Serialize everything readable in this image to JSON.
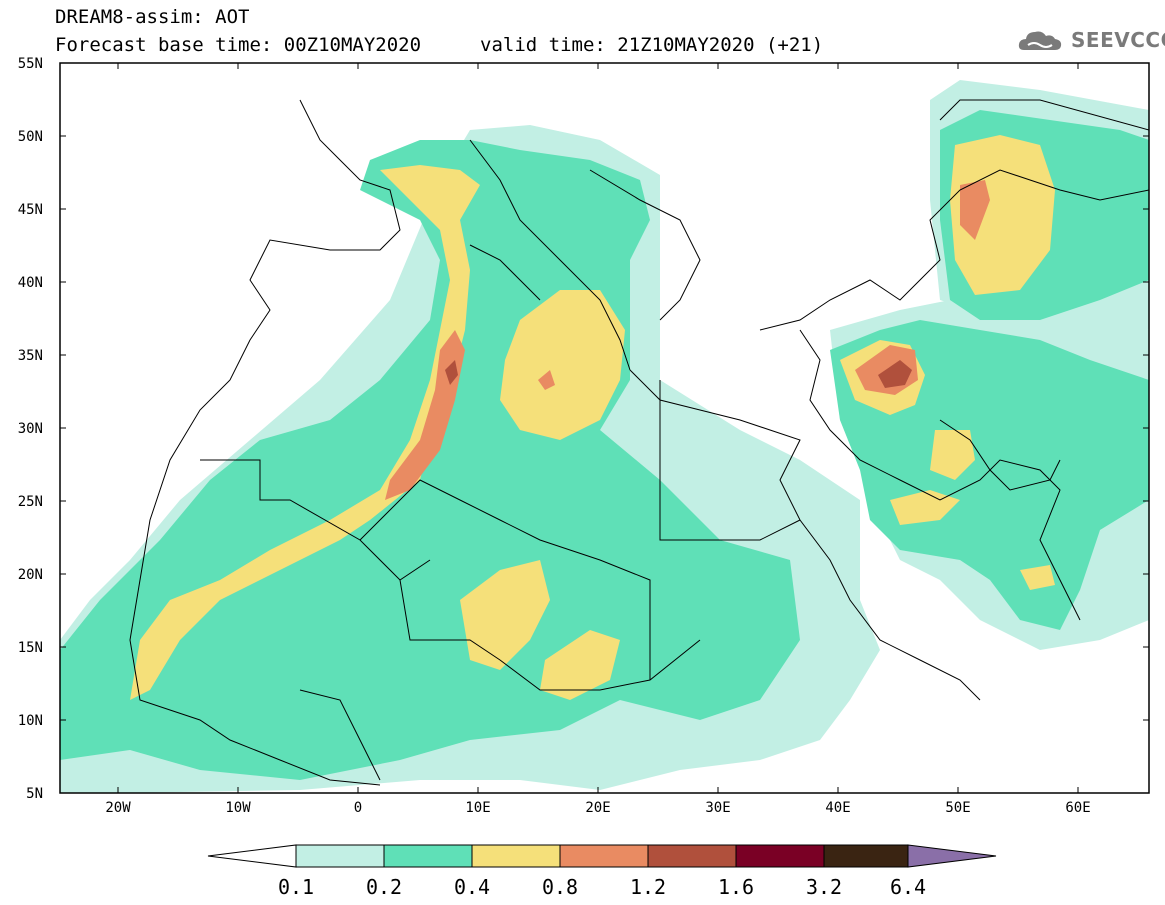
{
  "header": {
    "title": "DREAM8-assim: AOT",
    "base_time": "Forecast base time: 00Z10MAY2020",
    "valid_time": "valid time: 21Z10MAY2020 (+21)"
  },
  "logo": {
    "text": "SEEVCCC",
    "icon": "cloud-icon"
  },
  "map": {
    "lat_labels": [
      "55N",
      "50N",
      "45N",
      "40N",
      "35N",
      "30N",
      "25N",
      "20N",
      "15N",
      "10N",
      "5N"
    ],
    "lon_labels": [
      "20W",
      "10W",
      "0",
      "10E",
      "20E",
      "30E",
      "40E",
      "50E",
      "60E"
    ],
    "variable": "AOT"
  },
  "legend": {
    "labels": [
      "0.1",
      "0.2",
      "0.4",
      "0.8",
      "1.2",
      "1.6",
      "3.2",
      "6.4"
    ],
    "colors": [
      "#ffffff",
      "#c2efe4",
      "#5fe0b7",
      "#f5e07a",
      "#e98b62",
      "#b0503c",
      "#7a0025",
      "#3a2412",
      "#8a6fa8"
    ]
  }
}
